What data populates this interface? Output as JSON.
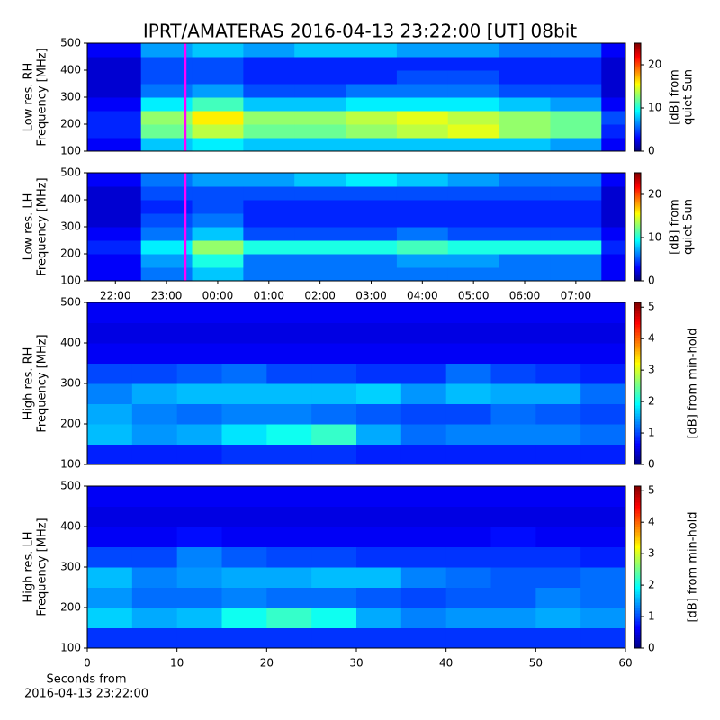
{
  "title": "IPRT/AMATERAS 2016-04-13 23:22:00 [UT]   08bit",
  "chart_data": [
    {
      "type": "heatmap",
      "ylabel": [
        "Low res. RH",
        "Frequency [MHz]"
      ],
      "colorbar_label": [
        "[dB] from",
        "quiet Sun"
      ],
      "ylim": [
        100,
        500
      ],
      "yticks": [
        100,
        200,
        300,
        400,
        500
      ],
      "xlim": [
        21.45,
        31.97
      ],
      "clim": [
        0,
        25
      ],
      "cticks": [
        0,
        10,
        20
      ],
      "cursor_x": 23.367,
      "cursor_color": "#ff00ff",
      "x_bins": [
        21.45,
        22.5,
        23.5,
        24.5,
        25.5,
        26.5,
        27.5,
        28.5,
        29.5,
        30.5,
        31.5,
        31.97
      ],
      "y_bins": [
        100,
        150,
        200,
        250,
        300,
        350,
        400,
        450,
        500
      ],
      "z": [
        [
          3,
          8,
          9,
          8,
          8,
          8,
          8,
          8,
          8,
          7,
          3
        ],
        [
          4,
          12,
          14,
          12,
          12,
          13,
          14,
          15,
          13,
          12,
          4
        ],
        [
          4,
          13,
          16,
          13,
          13,
          14,
          15,
          14,
          13,
          12,
          5
        ],
        [
          3,
          9,
          11,
          8,
          8,
          9,
          9,
          9,
          8,
          7,
          3
        ],
        [
          2,
          6,
          7,
          5,
          5,
          6,
          6,
          6,
          5,
          5,
          2
        ],
        [
          2,
          5,
          5,
          4,
          4,
          4,
          5,
          5,
          4,
          4,
          2
        ],
        [
          2,
          5,
          5,
          4,
          4,
          4,
          4,
          4,
          4,
          4,
          2
        ],
        [
          3,
          7,
          8,
          7,
          8,
          8,
          7,
          7,
          6,
          6,
          3
        ]
      ]
    },
    {
      "type": "heatmap",
      "ylabel": [
        "Low res. LH",
        "Frequency [MHz]"
      ],
      "colorbar_label": [
        "[dB] from",
        "quiet Sun"
      ],
      "ylim": [
        100,
        500
      ],
      "yticks": [
        100,
        200,
        300,
        400,
        500
      ],
      "xlim": [
        21.45,
        31.97
      ],
      "clim": [
        0,
        25
      ],
      "cticks": [
        0,
        10,
        20
      ],
      "cursor_x": 23.367,
      "cursor_color": "#ff00ff",
      "xticks": [
        {
          "value": 22,
          "label": "22:00"
        },
        {
          "value": 23,
          "label": "23:00"
        },
        {
          "value": 24,
          "label": "00:00"
        },
        {
          "value": 25,
          "label": "01:00"
        },
        {
          "value": 26,
          "label": "02:00"
        },
        {
          "value": 27,
          "label": "03:00"
        },
        {
          "value": 28,
          "label": "04:00"
        },
        {
          "value": 29,
          "label": "05:00"
        },
        {
          "value": 30,
          "label": "06:00"
        },
        {
          "value": 31,
          "label": "07:00"
        }
      ],
      "x_bins": [
        21.45,
        22.5,
        23.5,
        24.5,
        25.5,
        26.5,
        27.5,
        28.5,
        29.5,
        30.5,
        31.5,
        31.97
      ],
      "y_bins": [
        100,
        150,
        200,
        250,
        300,
        350,
        400,
        450,
        500
      ],
      "z": [
        [
          3,
          6,
          8,
          6,
          6,
          6,
          6,
          6,
          6,
          6,
          3
        ],
        [
          3,
          7,
          10,
          6,
          6,
          6,
          7,
          7,
          6,
          6,
          3
        ],
        [
          4,
          9,
          13,
          10,
          10,
          10,
          11,
          10,
          10,
          10,
          4
        ],
        [
          3,
          6,
          8,
          5,
          5,
          5,
          6,
          5,
          5,
          5,
          3
        ],
        [
          2,
          5,
          6,
          4,
          4,
          4,
          4,
          4,
          4,
          4,
          2
        ],
        [
          2,
          4,
          5,
          4,
          4,
          4,
          4,
          4,
          4,
          4,
          2
        ],
        [
          2,
          5,
          5,
          5,
          5,
          5,
          5,
          5,
          5,
          5,
          2
        ],
        [
          3,
          6,
          7,
          7,
          8,
          9,
          8,
          7,
          6,
          6,
          3
        ]
      ]
    },
    {
      "type": "heatmap",
      "ylabel": [
        "High res. RH",
        "Frequency [MHz]"
      ],
      "colorbar_label": [
        "[dB] from min-hold"
      ],
      "ylim": [
        100,
        500
      ],
      "yticks": [
        100,
        200,
        300,
        400,
        500
      ],
      "xlim": [
        0,
        60
      ],
      "clim": [
        0,
        5.15
      ],
      "cticks": [
        0,
        1,
        2,
        3,
        4,
        5
      ],
      "x_bins": [
        0,
        5,
        10,
        15,
        20,
        25,
        30,
        35,
        40,
        45,
        50,
        55,
        60
      ],
      "y_bins": [
        100,
        150,
        200,
        250,
        300,
        350,
        400,
        450,
        500
      ],
      "z": [
        [
          0.8,
          0.8,
          0.8,
          0.9,
          0.9,
          0.9,
          0.8,
          0.8,
          0.8,
          0.8,
          0.8,
          0.8
        ],
        [
          1.6,
          1.4,
          1.5,
          1.8,
          2.0,
          2.2,
          1.5,
          1.2,
          1.3,
          1.3,
          1.3,
          1.2
        ],
        [
          1.5,
          1.3,
          1.2,
          1.3,
          1.3,
          1.2,
          1.1,
          1.0,
          1.0,
          1.2,
          1.1,
          1.0
        ],
        [
          1.3,
          1.5,
          1.6,
          1.6,
          1.6,
          1.6,
          1.7,
          1.4,
          1.6,
          1.5,
          1.5,
          1.2
        ],
        [
          1.0,
          1.0,
          1.1,
          1.2,
          1.0,
          1.0,
          0.9,
          0.9,
          1.2,
          1.0,
          0.9,
          0.8
        ],
        [
          0.6,
          0.6,
          0.6,
          0.6,
          0.6,
          0.6,
          0.6,
          0.6,
          0.6,
          0.6,
          0.6,
          0.6
        ],
        [
          0.5,
          0.5,
          0.5,
          0.5,
          0.5,
          0.5,
          0.5,
          0.5,
          0.5,
          0.5,
          0.5,
          0.5
        ],
        [
          0.6,
          0.6,
          0.6,
          0.6,
          0.6,
          0.6,
          0.6,
          0.6,
          0.6,
          0.6,
          0.6,
          0.6
        ]
      ]
    },
    {
      "type": "heatmap",
      "ylabel": [
        "High res. LH",
        "Frequency [MHz]"
      ],
      "colorbar_label": [
        "[dB] from min-hold"
      ],
      "ylim": [
        100,
        500
      ],
      "yticks": [
        100,
        200,
        300,
        400,
        500
      ],
      "xlim": [
        0,
        60
      ],
      "clim": [
        0,
        5.15
      ],
      "cticks": [
        0,
        1,
        2,
        3,
        4,
        5
      ],
      "xticks": [
        0,
        10,
        20,
        30,
        40,
        50,
        60
      ],
      "xlabel": [
        "Seconds from",
        "2016-04-13 23:22:00"
      ],
      "x_bins": [
        0,
        5,
        10,
        15,
        20,
        25,
        30,
        35,
        40,
        45,
        50,
        55,
        60
      ],
      "y_bins": [
        100,
        150,
        200,
        250,
        300,
        350,
        400,
        450,
        500
      ],
      "z": [
        [
          0.9,
          0.9,
          0.9,
          0.9,
          0.9,
          0.9,
          0.9,
          0.9,
          0.9,
          0.9,
          0.9,
          0.9
        ],
        [
          1.7,
          1.5,
          1.6,
          2.0,
          2.2,
          2.0,
          1.5,
          1.3,
          1.4,
          1.4,
          1.5,
          1.4
        ],
        [
          1.4,
          1.2,
          1.2,
          1.3,
          1.2,
          1.2,
          1.1,
          1.0,
          1.1,
          1.1,
          1.3,
          1.2
        ],
        [
          1.6,
          1.3,
          1.4,
          1.5,
          1.5,
          1.6,
          1.6,
          1.3,
          1.2,
          1.1,
          1.1,
          1.2
        ],
        [
          1.0,
          1.0,
          1.3,
          1.1,
          1.0,
          1.0,
          0.9,
          0.9,
          0.9,
          0.9,
          0.9,
          0.8
        ],
        [
          0.6,
          0.6,
          0.7,
          0.6,
          0.6,
          0.6,
          0.6,
          0.6,
          0.6,
          0.7,
          0.6,
          0.6
        ],
        [
          0.5,
          0.5,
          0.5,
          0.5,
          0.5,
          0.5,
          0.5,
          0.5,
          0.5,
          0.5,
          0.5,
          0.5
        ],
        [
          0.6,
          0.6,
          0.6,
          0.6,
          0.6,
          0.6,
          0.6,
          0.6,
          0.6,
          0.6,
          0.6,
          0.6
        ]
      ]
    }
  ]
}
